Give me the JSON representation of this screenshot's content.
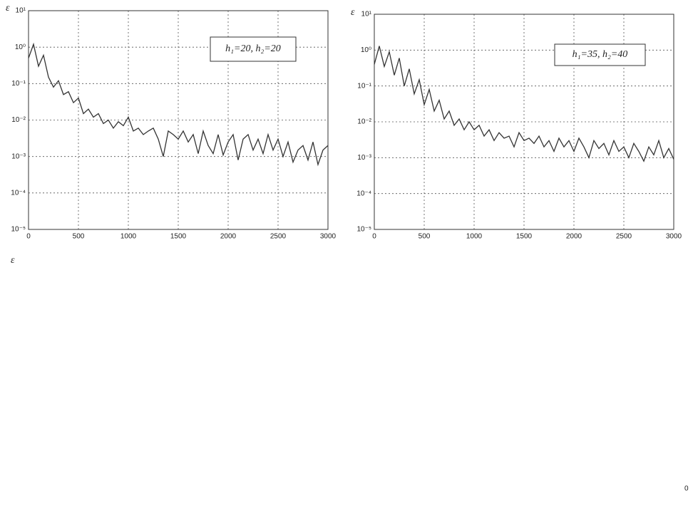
{
  "chart_data": [
    {
      "type": "line",
      "ylabel": "ε",
      "annotation": "h₁=20, h₂=20",
      "log_y": true,
      "grid": true,
      "color": "#333333",
      "x": [
        0,
        50,
        100,
        150,
        200,
        250,
        300,
        350,
        400,
        450,
        500,
        550,
        600,
        650,
        700,
        750,
        800,
        850,
        900,
        950,
        1000,
        1050,
        1100,
        1150,
        1200,
        1250,
        1300,
        1350,
        1400,
        1450,
        1500,
        1550,
        1600,
        1650,
        1700,
        1750,
        1800,
        1850,
        1900,
        1950,
        2000,
        2050,
        2100,
        2150,
        2200,
        2250,
        2300,
        2350,
        2400,
        2450,
        2500,
        2550,
        2600,
        2650,
        2700,
        2750,
        2800,
        2850,
        2900,
        2950,
        3000
      ],
      "values": [
        0.5,
        1.2,
        0.3,
        0.6,
        0.15,
        0.08,
        0.12,
        0.05,
        0.06,
        0.03,
        0.04,
        0.015,
        0.02,
        0.012,
        0.015,
        0.008,
        0.01,
        0.006,
        0.009,
        0.007,
        0.012,
        0.005,
        0.006,
        0.004,
        0.005,
        0.006,
        0.003,
        0.001,
        0.005,
        0.004,
        0.003,
        0.005,
        0.0025,
        0.004,
        0.0012,
        0.005,
        0.002,
        0.0012,
        0.004,
        0.0011,
        0.0025,
        0.004,
        0.0008,
        0.003,
        0.004,
        0.0015,
        0.003,
        0.0012,
        0.004,
        0.0015,
        0.003,
        0.001,
        0.0025,
        0.0007,
        0.0015,
        0.002,
        0.0008,
        0.0025,
        0.0006,
        0.0015,
        0.002
      ],
      "xlim": [
        0,
        3000
      ],
      "xticks": [
        0,
        500,
        1000,
        1500,
        2000,
        2500,
        3000
      ],
      "ylim": [
        1e-05,
        10
      ],
      "yticks": [
        {
          "value": 1e-05,
          "label": "10⁻⁵"
        },
        {
          "value": 0.0001,
          "label": "10⁻⁴"
        },
        {
          "value": 0.001,
          "label": "10⁻³"
        },
        {
          "value": 0.01,
          "label": "10⁻²"
        },
        {
          "value": 0.1,
          "label": "10⁻¹"
        },
        {
          "value": 1,
          "label": "10⁰"
        },
        {
          "value": 10,
          "label": "10¹"
        }
      ]
    },
    {
      "type": "line",
      "ylabel": "ε",
      "annotation": "h₁=35, h₂=40",
      "log_y": true,
      "grid": true,
      "color": "#333333",
      "x": [
        0,
        50,
        100,
        150,
        200,
        250,
        300,
        350,
        400,
        450,
        500,
        550,
        600,
        650,
        700,
        750,
        800,
        850,
        900,
        950,
        1000,
        1050,
        1100,
        1150,
        1200,
        1250,
        1300,
        1350,
        1400,
        1450,
        1500,
        1550,
        1600,
        1650,
        1700,
        1750,
        1800,
        1850,
        1900,
        1950,
        2000,
        2050,
        2100,
        2150,
        2200,
        2250,
        2300,
        2350,
        2400,
        2450,
        2500,
        2550,
        2600,
        2650,
        2700,
        2750,
        2800,
        2850,
        2900,
        2950,
        3000
      ],
      "values": [
        0.4,
        1.3,
        0.35,
        0.9,
        0.2,
        0.6,
        0.1,
        0.3,
        0.06,
        0.15,
        0.03,
        0.08,
        0.02,
        0.04,
        0.012,
        0.02,
        0.008,
        0.012,
        0.006,
        0.01,
        0.006,
        0.008,
        0.004,
        0.006,
        0.003,
        0.005,
        0.0035,
        0.004,
        0.002,
        0.005,
        0.003,
        0.0035,
        0.0025,
        0.004,
        0.002,
        0.003,
        0.0015,
        0.0035,
        0.002,
        0.003,
        0.0015,
        0.0035,
        0.002,
        0.001,
        0.003,
        0.0018,
        0.0025,
        0.0012,
        0.003,
        0.0015,
        0.002,
        0.001,
        0.0025,
        0.0015,
        0.0008,
        0.002,
        0.0012,
        0.003,
        0.001,
        0.0018,
        0.0009
      ],
      "xlim": [
        0,
        3000
      ],
      "xticks": [
        0,
        500,
        1000,
        1500,
        2000,
        2500,
        3000
      ],
      "ylim": [
        1e-05,
        10
      ],
      "yticks": [
        {
          "value": 1e-05,
          "label": "10⁻⁵"
        },
        {
          "value": 0.0001,
          "label": "10⁻⁴"
        },
        {
          "value": 0.001,
          "label": "10⁻³"
        },
        {
          "value": 0.01,
          "label": "10⁻²"
        },
        {
          "value": 0.1,
          "label": "10⁻¹"
        },
        {
          "value": 1,
          "label": "10⁰"
        },
        {
          "value": 10,
          "label": "10¹"
        }
      ]
    }
  ],
  "footer": {
    "stray_label": "ε",
    "page_number": "0"
  }
}
